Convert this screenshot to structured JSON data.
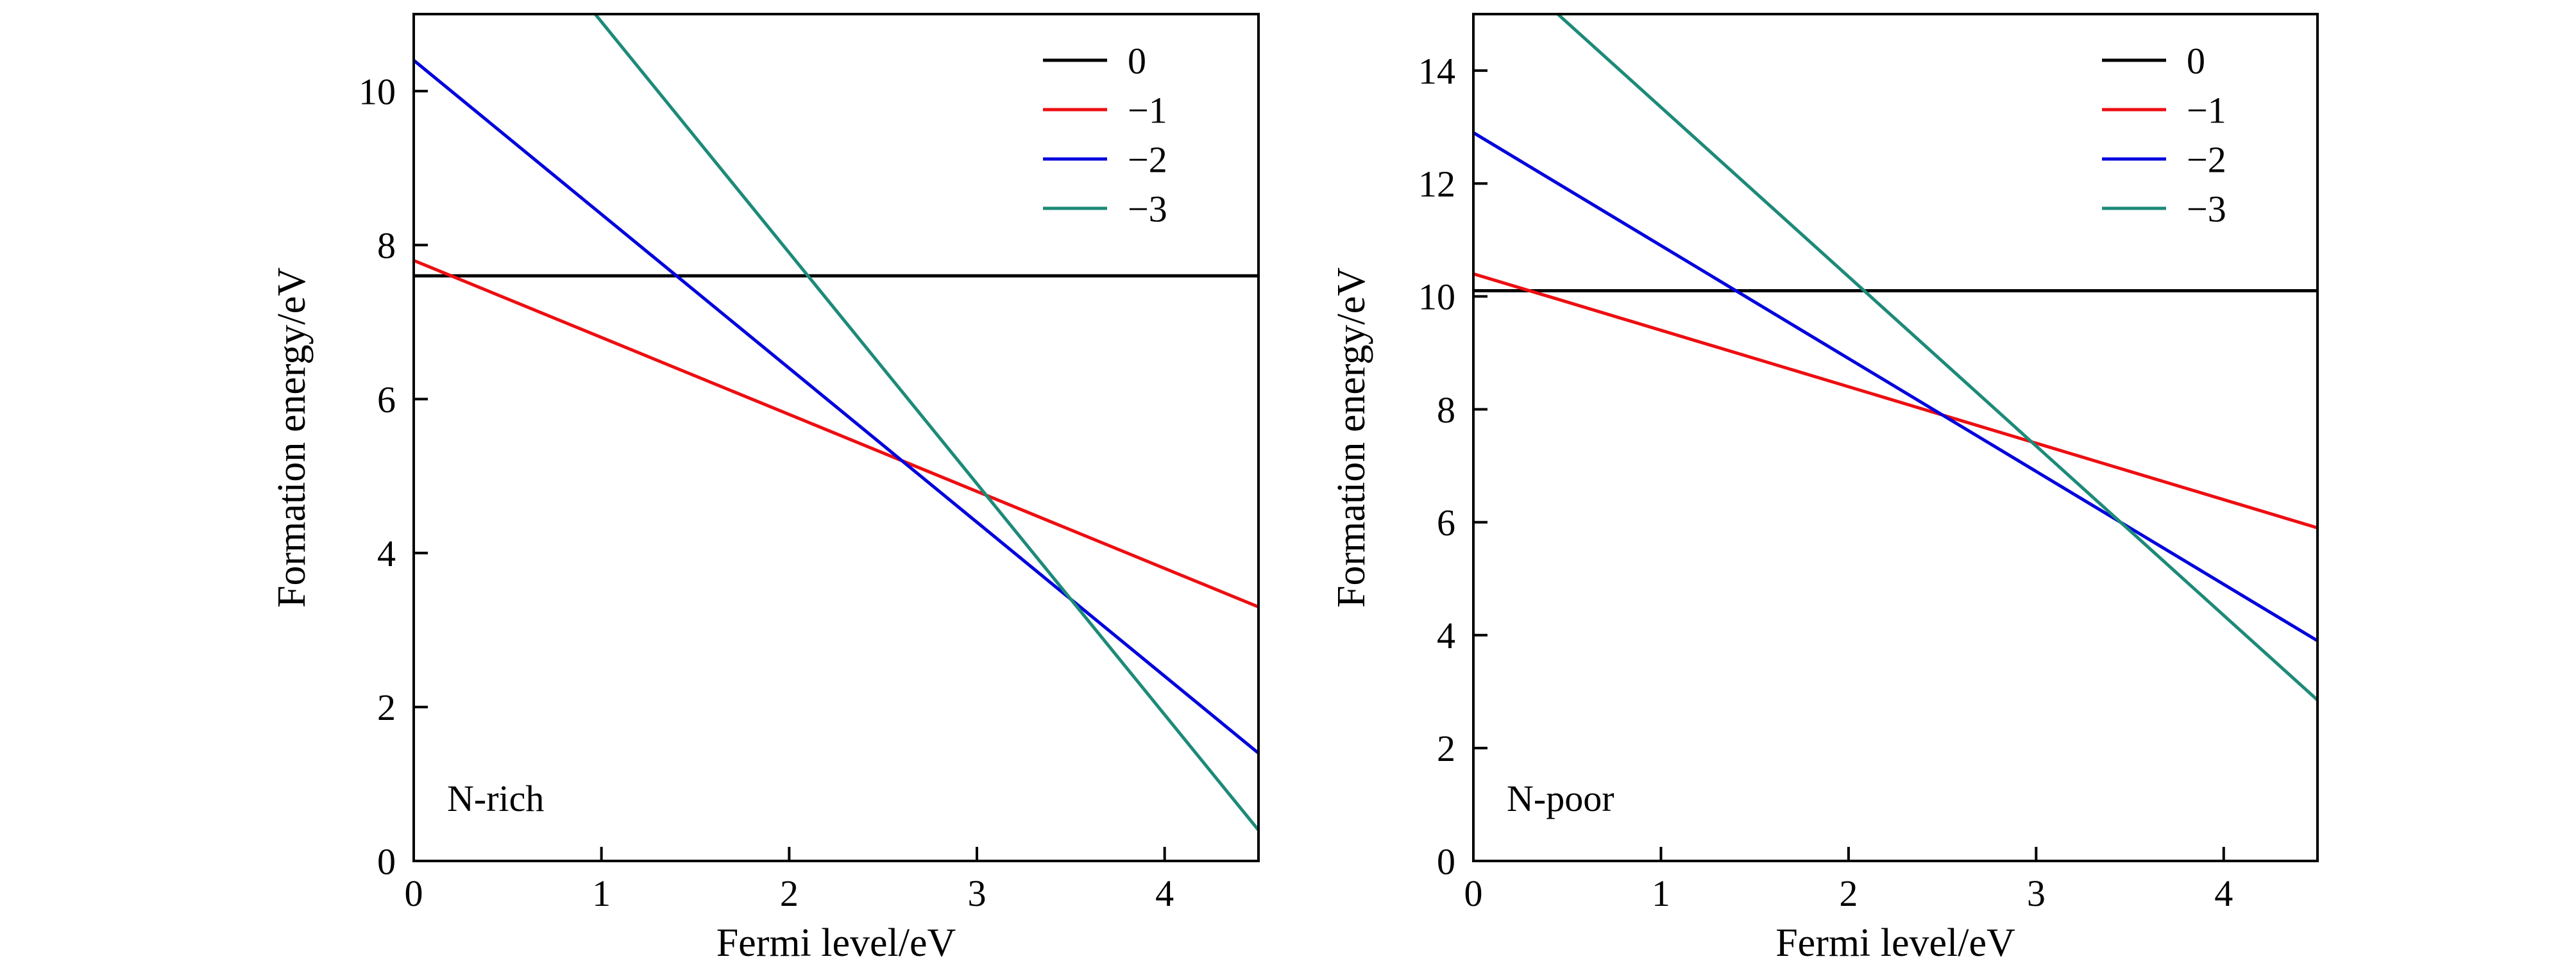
{
  "figure": {
    "background": "#ffffff",
    "panel_count": 2
  },
  "chart_data": [
    {
      "type": "line",
      "panel_label": "N-rich",
      "xlabel": "Fermi level/eV",
      "ylabel": "Formation energy/eV",
      "xlim": [
        0,
        4.5
      ],
      "ylim": [
        0,
        11
      ],
      "xticks": [
        0,
        1,
        2,
        3,
        4
      ],
      "yticks": [
        0,
        2,
        4,
        6,
        8,
        10
      ],
      "grid": false,
      "legend_position": "top-right",
      "series": [
        {
          "name": "0",
          "color": "#000000",
          "x": [
            0,
            4.5
          ],
          "y": [
            7.6,
            7.6
          ]
        },
        {
          "name": "−1",
          "color": "#ed0e11",
          "x": [
            0,
            4.5
          ],
          "y": [
            7.8,
            3.3
          ]
        },
        {
          "name": "−2",
          "color": "#0000dd",
          "x": [
            0,
            4.5
          ],
          "y": [
            10.4,
            1.4
          ]
        },
        {
          "name": "−3",
          "color": "#1d8a79",
          "x": [
            0,
            4.5
          ],
          "y": [
            13.9,
            0.4
          ]
        }
      ]
    },
    {
      "type": "line",
      "panel_label": "N-poor",
      "xlabel": "Fermi level/eV",
      "ylabel": "Formation energy/eV",
      "xlim": [
        0,
        4.5
      ],
      "ylim": [
        0,
        15
      ],
      "xticks": [
        0,
        1,
        2,
        3,
        4
      ],
      "yticks": [
        0,
        2,
        4,
        6,
        8,
        10,
        12,
        14
      ],
      "grid": false,
      "legend_position": "top-right",
      "series": [
        {
          "name": "0",
          "color": "#000000",
          "x": [
            0,
            4.5
          ],
          "y": [
            10.1,
            10.1
          ]
        },
        {
          "name": "−1",
          "color": "#ed0e11",
          "x": [
            0,
            4.5
          ],
          "y": [
            10.4,
            5.9
          ]
        },
        {
          "name": "−2",
          "color": "#0000dd",
          "x": [
            0,
            4.5
          ],
          "y": [
            12.9,
            3.9
          ]
        },
        {
          "name": "−3",
          "color": "#1d8a79",
          "x": [
            0,
            4.5
          ],
          "y": [
            16.35,
            2.85
          ]
        }
      ]
    }
  ]
}
